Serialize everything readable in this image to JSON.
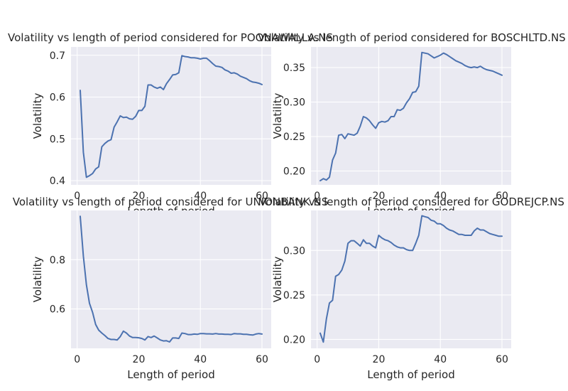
{
  "figure": {
    "background": "#ffffff",
    "panel_background": "#eaeaf2",
    "grid_color": "#ffffff",
    "line_color": "#4c72b0"
  },
  "chart_data": [
    {
      "type": "line",
      "title": "Volatility vs length of period considered for POONAWALLA.NS",
      "xlabel": "Length of period",
      "ylabel": "Volatility",
      "xlim": [
        -2,
        63
      ],
      "ylim": [
        0.39,
        0.72
      ],
      "xticks": [
        0,
        20,
        40,
        60
      ],
      "xtick_labels": [
        "0",
        "20",
        "40",
        "60"
      ],
      "yticks": [
        0.4,
        0.5,
        0.6,
        0.7
      ],
      "ytick_labels": [
        "0.4",
        "0.5",
        "0.6",
        "0.7"
      ],
      "grid": true,
      "x": [
        1,
        2,
        3,
        4,
        5,
        6,
        7,
        8,
        9,
        10,
        11,
        12,
        13,
        14,
        15,
        16,
        17,
        18,
        19,
        20,
        21,
        22,
        23,
        24,
        25,
        26,
        27,
        28,
        29,
        30,
        31,
        32,
        33,
        34,
        35,
        36,
        37,
        38,
        39,
        40,
        41,
        42,
        43,
        44,
        45,
        46,
        47,
        48,
        49,
        50,
        51,
        52,
        53,
        54,
        55,
        56,
        57,
        58,
        59,
        60
      ],
      "series": [
        {
          "values": [
            0.616,
            0.468,
            0.408,
            0.412,
            0.417,
            0.428,
            0.433,
            0.481,
            0.489,
            0.495,
            0.498,
            0.528,
            0.541,
            0.555,
            0.551,
            0.552,
            0.548,
            0.547,
            0.554,
            0.568,
            0.568,
            0.578,
            0.629,
            0.629,
            0.624,
            0.621,
            0.624,
            0.618,
            0.632,
            0.642,
            0.653,
            0.654,
            0.658,
            0.699,
            0.697,
            0.696,
            0.694,
            0.694,
            0.693,
            0.691,
            0.693,
            0.693,
            0.687,
            0.68,
            0.674,
            0.673,
            0.671,
            0.665,
            0.662,
            0.657,
            0.658,
            0.655,
            0.65,
            0.647,
            0.644,
            0.639,
            0.636,
            0.635,
            0.633,
            0.63
          ]
        }
      ]
    },
    {
      "type": "line",
      "title": "Volatility vs length of period considered for BOSCHLTD.NS",
      "xlabel": "Length of period",
      "ylabel": "Volatility",
      "xlim": [
        -2,
        63
      ],
      "ylim": [
        0.18,
        0.38
      ],
      "xticks": [
        0,
        20,
        40,
        60
      ],
      "xtick_labels": [
        "0",
        "20",
        "40",
        "60"
      ],
      "yticks": [
        0.2,
        0.25,
        0.3,
        0.35
      ],
      "ytick_labels": [
        "0.20",
        "0.25",
        "0.30",
        "0.35"
      ],
      "grid": true,
      "x": [
        1,
        2,
        3,
        4,
        5,
        6,
        7,
        8,
        9,
        10,
        11,
        12,
        13,
        14,
        15,
        16,
        17,
        18,
        19,
        20,
        21,
        22,
        23,
        24,
        25,
        26,
        27,
        28,
        29,
        30,
        31,
        32,
        33,
        34,
        35,
        36,
        37,
        38,
        39,
        40,
        41,
        42,
        43,
        44,
        45,
        46,
        47,
        48,
        49,
        50,
        51,
        52,
        53,
        54,
        55,
        56,
        57,
        58,
        59,
        60
      ],
      "series": [
        {
          "values": [
            0.186,
            0.189,
            0.187,
            0.191,
            0.216,
            0.226,
            0.252,
            0.253,
            0.247,
            0.254,
            0.253,
            0.252,
            0.255,
            0.265,
            0.279,
            0.277,
            0.273,
            0.267,
            0.262,
            0.27,
            0.272,
            0.271,
            0.273,
            0.279,
            0.279,
            0.289,
            0.288,
            0.291,
            0.299,
            0.305,
            0.314,
            0.315,
            0.323,
            0.372,
            0.371,
            0.37,
            0.367,
            0.364,
            0.366,
            0.368,
            0.371,
            0.369,
            0.366,
            0.363,
            0.36,
            0.358,
            0.356,
            0.353,
            0.351,
            0.35,
            0.351,
            0.35,
            0.352,
            0.349,
            0.347,
            0.346,
            0.345,
            0.343,
            0.341,
            0.339
          ]
        }
      ]
    },
    {
      "type": "line",
      "title": "Volatility vs length of period considered for UNIONBANK.NS",
      "xlabel": "Length of period",
      "ylabel": "Volatility",
      "xlim": [
        -2,
        63
      ],
      "ylim": [
        0.44,
        1.0
      ],
      "xticks": [
        0,
        20,
        40,
        60
      ],
      "xtick_labels": [
        "0",
        "20",
        "40",
        "60"
      ],
      "yticks": [
        0.6,
        0.8
      ],
      "ytick_labels": [
        "0.6",
        "0.8"
      ],
      "grid": true,
      "x": [
        1,
        2,
        3,
        4,
        5,
        6,
        7,
        8,
        9,
        10,
        11,
        12,
        13,
        14,
        15,
        16,
        17,
        18,
        19,
        20,
        21,
        22,
        23,
        24,
        25,
        26,
        27,
        28,
        29,
        30,
        31,
        32,
        33,
        34,
        35,
        36,
        37,
        38,
        39,
        40,
        41,
        42,
        43,
        44,
        45,
        46,
        47,
        48,
        49,
        50,
        51,
        52,
        53,
        54,
        55,
        56,
        57,
        58,
        59,
        60
      ],
      "series": [
        {
          "values": [
            0.976,
            0.815,
            0.698,
            0.623,
            0.586,
            0.537,
            0.514,
            0.502,
            0.492,
            0.48,
            0.476,
            0.476,
            0.474,
            0.488,
            0.51,
            0.502,
            0.49,
            0.484,
            0.484,
            0.483,
            0.48,
            0.474,
            0.488,
            0.484,
            0.49,
            0.482,
            0.474,
            0.47,
            0.471,
            0.466,
            0.482,
            0.482,
            0.48,
            0.502,
            0.5,
            0.496,
            0.496,
            0.498,
            0.497,
            0.5,
            0.5,
            0.499,
            0.499,
            0.498,
            0.5,
            0.498,
            0.498,
            0.497,
            0.497,
            0.496,
            0.5,
            0.499,
            0.499,
            0.497,
            0.497,
            0.495,
            0.494,
            0.498,
            0.5,
            0.498
          ]
        }
      ]
    },
    {
      "type": "line",
      "title": "Volatility vs length of period considered for GODREJCP.NS",
      "xlabel": "Length of period",
      "ylabel": "Volatility",
      "xlim": [
        -2,
        63
      ],
      "ylim": [
        0.19,
        0.345
      ],
      "xticks": [
        0,
        20,
        40,
        60
      ],
      "xtick_labels": [
        "0",
        "20",
        "40",
        "60"
      ],
      "yticks": [
        0.2,
        0.25,
        0.3
      ],
      "ytick_labels": [
        "0.20",
        "0.25",
        "0.30"
      ],
      "grid": true,
      "x": [
        1,
        2,
        3,
        4,
        5,
        6,
        7,
        8,
        9,
        10,
        11,
        12,
        13,
        14,
        15,
        16,
        17,
        18,
        19,
        20,
        21,
        22,
        23,
        24,
        25,
        26,
        27,
        28,
        29,
        30,
        31,
        32,
        33,
        34,
        35,
        36,
        37,
        38,
        39,
        40,
        41,
        42,
        43,
        44,
        45,
        46,
        47,
        48,
        49,
        50,
        51,
        52,
        53,
        54,
        55,
        56,
        57,
        58,
        59,
        60
      ],
      "series": [
        {
          "values": [
            0.207,
            0.197,
            0.223,
            0.241,
            0.244,
            0.271,
            0.273,
            0.278,
            0.288,
            0.308,
            0.311,
            0.311,
            0.308,
            0.305,
            0.312,
            0.308,
            0.308,
            0.305,
            0.303,
            0.317,
            0.314,
            0.312,
            0.311,
            0.309,
            0.306,
            0.304,
            0.303,
            0.303,
            0.301,
            0.3,
            0.3,
            0.308,
            0.317,
            0.339,
            0.338,
            0.337,
            0.334,
            0.333,
            0.33,
            0.33,
            0.328,
            0.325,
            0.323,
            0.322,
            0.32,
            0.318,
            0.318,
            0.317,
            0.317,
            0.317,
            0.322,
            0.325,
            0.323,
            0.323,
            0.321,
            0.319,
            0.318,
            0.317,
            0.316,
            0.316
          ]
        }
      ]
    }
  ]
}
